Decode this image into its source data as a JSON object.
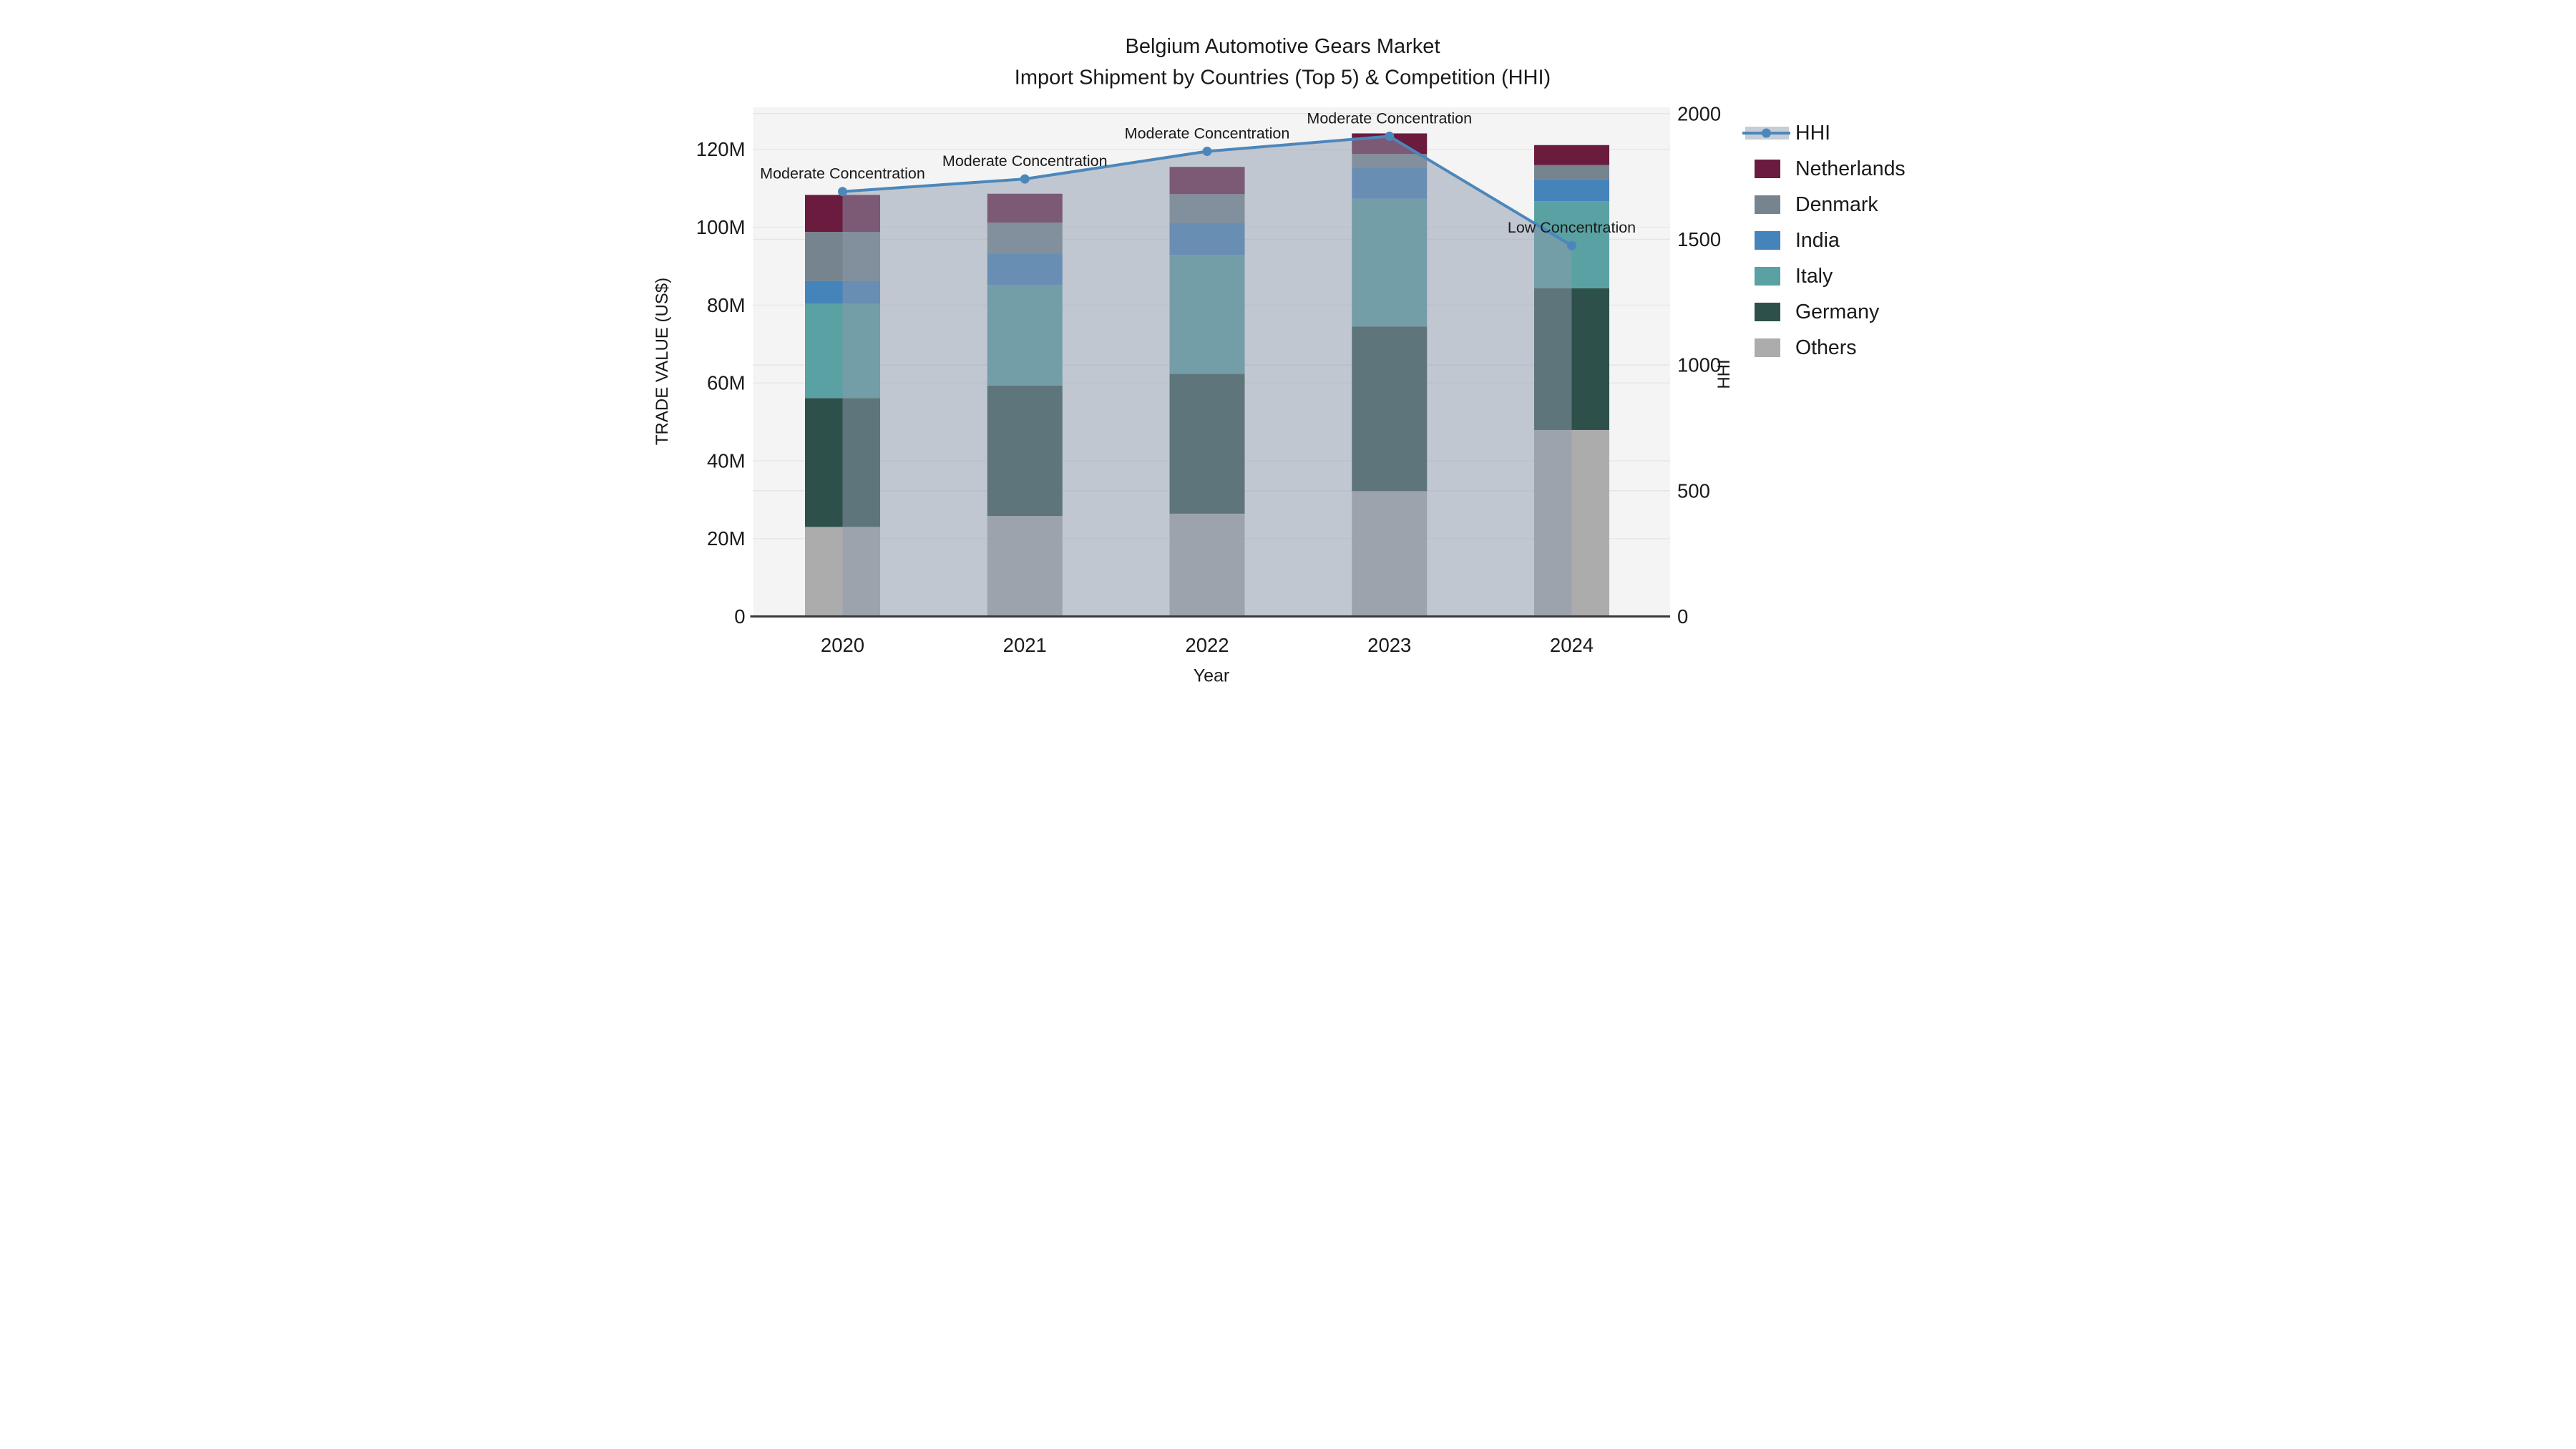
{
  "chart_data": {
    "type": "combo-stacked-bar-line",
    "title_line1": "Belgium Automotive Gears Market",
    "title_line2": "Import Shipment by Countries (Top 5) & Competition (HHI)",
    "xlabel": "Year",
    "ylabel_left": "TRADE VALUE (US$)",
    "ylabel_right": "HHI",
    "categories": [
      "2020",
      "2021",
      "2022",
      "2023",
      "2024"
    ],
    "bar_value_unit": "million US$",
    "series": [
      {
        "name": "Others",
        "color": "#ACACAC",
        "values": [
          23.0,
          25.8,
          26.4,
          32.2,
          47.9
        ]
      },
      {
        "name": "Germany",
        "color": "#2E504B",
        "values": [
          33.1,
          33.5,
          35.9,
          42.3,
          36.4
        ]
      },
      {
        "name": "Italy",
        "color": "#59A1A3",
        "values": [
          24.2,
          25.9,
          30.6,
          32.8,
          22.4
        ]
      },
      {
        "name": "India",
        "color": "#4583BB",
        "values": [
          5.9,
          8.0,
          8.2,
          8.0,
          5.6
        ]
      },
      {
        "name": "Denmark",
        "color": "#76848F",
        "values": [
          12.6,
          8.0,
          7.4,
          3.5,
          3.7
        ]
      },
      {
        "name": "Netherlands",
        "color": "#6A1B3E",
        "values": [
          9.5,
          7.4,
          7.0,
          5.3,
          5.1
        ]
      }
    ],
    "bar_totals": [
      108.3,
      108.6,
      115.5,
      124.1,
      121.1
    ],
    "hhi": {
      "name": "HHI",
      "line_color": "#4C87BB",
      "area_color_rgba": "rgba(141,153,171,0.5)",
      "values": [
        1690,
        1740,
        1850,
        1910,
        1475
      ]
    },
    "annotations": [
      {
        "category": "2020",
        "text": "Moderate Concentration"
      },
      {
        "category": "2021",
        "text": "Moderate Concentration"
      },
      {
        "category": "2022",
        "text": "Moderate Concentration"
      },
      {
        "category": "2023",
        "text": "Moderate Concentration"
      },
      {
        "category": "2024",
        "text": "Low Concentration"
      }
    ],
    "y_left": {
      "ticks": [
        "0",
        "20M",
        "40M",
        "60M",
        "80M",
        "100M",
        "120M"
      ],
      "tick_values": [
        0,
        20,
        40,
        60,
        80,
        100,
        120
      ],
      "axis_max": 130.8
    },
    "y_right": {
      "ticks": [
        "0",
        "500",
        "1000",
        "1500",
        "2000"
      ],
      "tick_values": [
        0,
        500,
        1000,
        1500,
        2000
      ],
      "axis_max": 2025
    },
    "legend": [
      "HHI",
      "Netherlands",
      "Denmark",
      "India",
      "Italy",
      "Germany",
      "Others"
    ],
    "style": {
      "plot_bg": "#F4F4F5",
      "grid_left": "#E8E8EA",
      "grid_right": "#E2E5EB",
      "axis_line": "#3A3A3A",
      "text_color": "#1a1a1a"
    }
  }
}
